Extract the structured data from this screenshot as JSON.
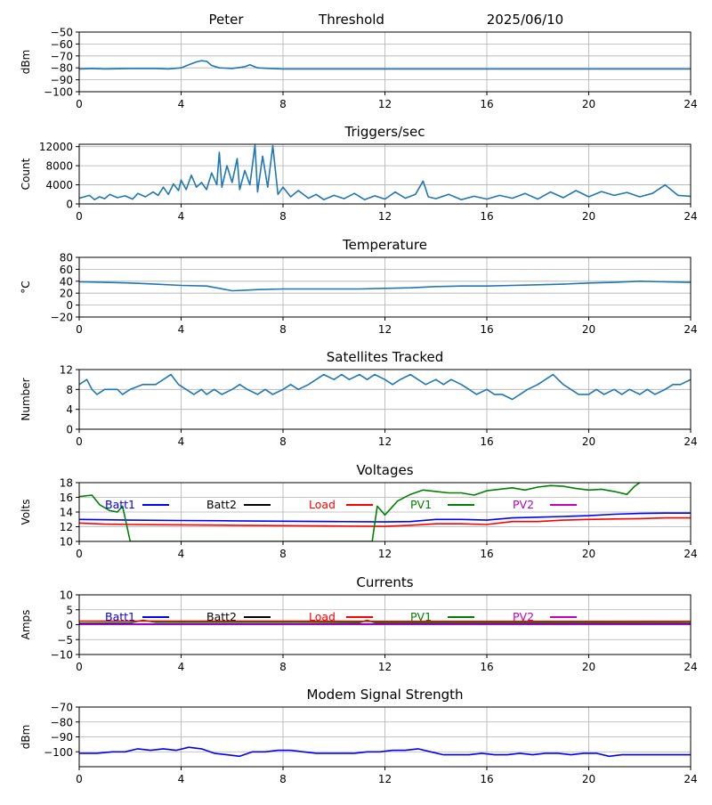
{
  "header": {
    "site": "Peter",
    "mode": "Threshold",
    "date": "2025/06/10"
  },
  "chart_data": [
    {
      "id": "rssi",
      "type": "line",
      "title": "",
      "ylabel": "dBm",
      "xlim": [
        0,
        24
      ],
      "ylim": [
        -100,
        -50
      ],
      "xticks": [
        "0",
        "4",
        "8",
        "12",
        "16",
        "20",
        "24"
      ],
      "yticks": [
        "−50",
        "−60",
        "−70",
        "−80",
        "−90",
        "−100"
      ],
      "ytick_values": [
        -50,
        -60,
        -70,
        -80,
        -90,
        -100
      ],
      "grid": true,
      "series": [
        {
          "color": "#1f77b4",
          "x": [
            0,
            0.5,
            1,
            2,
            3,
            3.5,
            4,
            4.3,
            4.6,
            4.8,
            5.0,
            5.2,
            5.5,
            6,
            6.5,
            6.7,
            7,
            7.5,
            8,
            9,
            10,
            12,
            14,
            16,
            18,
            20,
            22,
            24
          ],
          "y": [
            -81,
            -80.5,
            -81,
            -80.5,
            -80.5,
            -81,
            -80,
            -77.5,
            -75,
            -74,
            -74.5,
            -78,
            -80,
            -80.5,
            -79,
            -77.5,
            -80,
            -80.5,
            -81,
            -81,
            -81,
            -81,
            -81,
            -81,
            -81,
            -81,
            -81,
            -81
          ]
        }
      ]
    },
    {
      "id": "triggers",
      "type": "line",
      "title": "Triggers/sec",
      "ylabel": "Count",
      "xlim": [
        0,
        24
      ],
      "ylim": [
        0,
        12500
      ],
      "xticks": [
        "0",
        "4",
        "8",
        "12",
        "16",
        "20",
        "24"
      ],
      "yticks": [
        "12000",
        "8000",
        "4000",
        "0"
      ],
      "ytick_values": [
        12000,
        8000,
        4000,
        0
      ],
      "grid": true,
      "series": [
        {
          "color": "#1f77b4",
          "x": [
            0,
            0.4,
            0.6,
            0.8,
            1.0,
            1.2,
            1.5,
            1.8,
            2.1,
            2.3,
            2.6,
            2.9,
            3.1,
            3.3,
            3.5,
            3.7,
            3.9,
            4.0,
            4.2,
            4.4,
            4.6,
            4.8,
            5.0,
            5.2,
            5.4,
            5.5,
            5.6,
            5.8,
            6.0,
            6.2,
            6.3,
            6.5,
            6.7,
            6.9,
            7.0,
            7.2,
            7.4,
            7.6,
            7.8,
            8.0,
            8.3,
            8.6,
            9.0,
            9.3,
            9.6,
            10.0,
            10.4,
            10.8,
            11.2,
            11.6,
            12.0,
            12.4,
            12.8,
            13.2,
            13.5,
            13.7,
            14.0,
            14.5,
            15.0,
            15.5,
            16.0,
            16.5,
            17.0,
            17.5,
            18.0,
            18.5,
            19.0,
            19.5,
            20.0,
            20.5,
            21.0,
            21.5,
            22.0,
            22.5,
            23.0,
            23.5,
            24.0
          ],
          "y": [
            1200,
            1800,
            900,
            1500,
            1100,
            2000,
            1300,
            1700,
            1000,
            2200,
            1500,
            2500,
            1800,
            3500,
            2000,
            4200,
            2800,
            5000,
            3000,
            6000,
            3500,
            4500,
            3000,
            6500,
            4000,
            10800,
            3500,
            8000,
            4500,
            9500,
            3000,
            7000,
            4000,
            12300,
            2500,
            10000,
            3500,
            12200,
            2000,
            3500,
            1500,
            2800,
            1200,
            2000,
            900,
            1800,
            1100,
            2200,
            900,
            1700,
            1000,
            2500,
            1200,
            2000,
            4800,
            1500,
            1100,
            2000,
            900,
            1600,
            1000,
            1800,
            1200,
            2200,
            1000,
            2500,
            1300,
            2800,
            1500,
            2600,
            1800,
            2400,
            1500,
            2200,
            4000,
            1800,
            1600
          ]
        }
      ]
    },
    {
      "id": "temperature",
      "type": "line",
      "title": "Temperature",
      "ylabel": "°C",
      "xlim": [
        0,
        24
      ],
      "ylim": [
        -20,
        80
      ],
      "xticks": [
        "0",
        "4",
        "8",
        "12",
        "16",
        "20",
        "24"
      ],
      "yticks": [
        "80",
        "60",
        "40",
        "20",
        "0",
        "−20"
      ],
      "ytick_values": [
        80,
        60,
        40,
        20,
        0,
        -20
      ],
      "grid": true,
      "series": [
        {
          "color": "#1f77b4",
          "x": [
            0,
            1,
            2,
            3,
            4,
            5,
            5.5,
            6,
            6.5,
            7,
            8,
            9,
            10,
            11,
            12,
            13,
            14,
            15,
            16,
            17,
            18,
            19,
            20,
            21,
            22,
            23,
            24
          ],
          "y": [
            39,
            38,
            37,
            35,
            33,
            32,
            28,
            24,
            25,
            26,
            27,
            27,
            27,
            27,
            28,
            29,
            31,
            32,
            32,
            33,
            34,
            35,
            37,
            38,
            40,
            39,
            38
          ]
        }
      ]
    },
    {
      "id": "satellites",
      "type": "line",
      "title": "Satellites Tracked",
      "ylabel": "Number",
      "xlim": [
        0,
        24
      ],
      "ylim": [
        0,
        12
      ],
      "xticks": [
        "0",
        "4",
        "8",
        "12",
        "16",
        "20",
        "24"
      ],
      "yticks": [
        "12",
        "8",
        "4",
        "0"
      ],
      "ytick_values": [
        12,
        8,
        4,
        0
      ],
      "grid": true,
      "series": [
        {
          "color": "#1f77b4",
          "x": [
            0,
            0.3,
            0.5,
            0.7,
            1.0,
            1.5,
            1.7,
            2.0,
            2.5,
            3.0,
            3.3,
            3.6,
            3.9,
            4.2,
            4.5,
            4.8,
            5.0,
            5.3,
            5.6,
            6.0,
            6.3,
            6.6,
            7.0,
            7.3,
            7.6,
            8.0,
            8.3,
            8.6,
            9.0,
            9.3,
            9.6,
            10.0,
            10.3,
            10.6,
            11.0,
            11.3,
            11.6,
            12.0,
            12.3,
            12.6,
            13.0,
            13.3,
            13.6,
            14.0,
            14.3,
            14.6,
            15.0,
            15.3,
            15.6,
            16.0,
            16.3,
            16.6,
            17.0,
            17.3,
            17.6,
            18.0,
            18.3,
            18.6,
            19.0,
            19.3,
            19.6,
            20.0,
            20.3,
            20.6,
            21.0,
            21.3,
            21.6,
            22.0,
            22.3,
            22.6,
            23.0,
            23.3,
            23.6,
            24.0
          ],
          "y": [
            9,
            10,
            8,
            7,
            8,
            8,
            7,
            8,
            9,
            9,
            10,
            11,
            9,
            8,
            7,
            8,
            7,
            8,
            7,
            8,
            9,
            8,
            7,
            8,
            7,
            8,
            9,
            8,
            9,
            10,
            11,
            10,
            11,
            10,
            11,
            10,
            11,
            10,
            9,
            10,
            11,
            10,
            9,
            10,
            9,
            10,
            9,
            8,
            7,
            8,
            7,
            7,
            6,
            7,
            8,
            9,
            10,
            11,
            9,
            8,
            7,
            7,
            8,
            7,
            8,
            7,
            8,
            7,
            8,
            7,
            8,
            9,
            9,
            10
          ]
        }
      ]
    },
    {
      "id": "voltages",
      "type": "line",
      "title": "Voltages",
      "ylabel": "Volts",
      "xlim": [
        0,
        24
      ],
      "ylim": [
        10,
        18
      ],
      "xticks": [
        "0",
        "4",
        "8",
        "12",
        "16",
        "20",
        "24"
      ],
      "yticks": [
        "18",
        "16",
        "14",
        "12",
        "10"
      ],
      "ytick_values": [
        18,
        16,
        14,
        12,
        10
      ],
      "grid": true,
      "legend": [
        {
          "label": "Batt1",
          "color": "#0000ff"
        },
        {
          "label": "Batt2",
          "color": "#000000"
        },
        {
          "label": "Load",
          "color": "#ff0000"
        },
        {
          "label": "PV1",
          "color": "#008000"
        },
        {
          "label": "PV2",
          "color": "#bf00bf"
        }
      ],
      "series": [
        {
          "name": "Batt1",
          "color": "#0000ff",
          "x": [
            0,
            2,
            4,
            6,
            8,
            10,
            12,
            13,
            14,
            15,
            16,
            17,
            18,
            19,
            20,
            21,
            22,
            23,
            24
          ],
          "y": [
            13.0,
            12.9,
            12.85,
            12.8,
            12.75,
            12.7,
            12.65,
            12.7,
            13.0,
            13.0,
            12.9,
            13.2,
            13.3,
            13.4,
            13.5,
            13.7,
            13.8,
            13.85,
            13.85
          ]
        },
        {
          "name": "Load",
          "color": "#ff0000",
          "x": [
            0,
            1,
            2,
            4,
            6,
            8,
            10,
            12,
            13,
            14,
            15,
            16,
            17,
            18,
            19,
            20,
            21,
            22,
            23,
            24
          ],
          "y": [
            12.5,
            12.35,
            12.3,
            12.25,
            12.2,
            12.15,
            12.1,
            12.05,
            12.2,
            12.4,
            12.4,
            12.3,
            12.7,
            12.7,
            12.9,
            13.0,
            13.05,
            13.1,
            13.2,
            13.2
          ]
        },
        {
          "name": "PV1",
          "color": "#008000",
          "x": [
            0,
            0.5,
            0.8,
            1.2,
            1.5,
            1.7,
            2.0,
            2.2,
            11.5,
            11.7,
            12.0,
            12.5,
            13.0,
            13.5,
            14.0,
            14.5,
            15.0,
            15.5,
            16.0,
            16.5,
            17.0,
            17.5,
            18.0,
            18.5,
            19.0,
            19.5,
            20.0,
            20.5,
            21.0,
            21.5,
            21.8,
            22.0
          ],
          "y": [
            16.1,
            16.3,
            15.0,
            14.2,
            14.0,
            14.8,
            10.0,
            10.0,
            10.0,
            14.8,
            13.6,
            15.5,
            16.4,
            17.0,
            16.8,
            16.6,
            16.6,
            16.3,
            16.9,
            17.1,
            17.3,
            17.0,
            17.4,
            17.6,
            17.5,
            17.2,
            17.0,
            17.1,
            16.8,
            16.4,
            17.5,
            18.0
          ]
        }
      ]
    },
    {
      "id": "currents",
      "type": "line",
      "title": "Currents",
      "ylabel": "Amps",
      "xlim": [
        0,
        24
      ],
      "ylim": [
        -10,
        10
      ],
      "xticks": [
        "0",
        "4",
        "8",
        "12",
        "16",
        "20",
        "24"
      ],
      "yticks": [
        "10",
        "5",
        "0",
        "−5",
        "−10"
      ],
      "ytick_values": [
        10,
        5,
        0,
        -5,
        -10
      ],
      "grid": true,
      "legend": [
        {
          "label": "Batt1",
          "color": "#0000ff"
        },
        {
          "label": "Batt2",
          "color": "#000000"
        },
        {
          "label": "Load",
          "color": "#ff0000"
        },
        {
          "label": "PV1",
          "color": "#008000"
        },
        {
          "label": "PV2",
          "color": "#bf00bf"
        }
      ],
      "series": [
        {
          "name": "PV1",
          "color": "#008000",
          "x": [
            0,
            2.0,
            2.5,
            3.0,
            6.0,
            9.0,
            11.0,
            11.3,
            11.6,
            14.0,
            18.0,
            24.0
          ],
          "y": [
            0.5,
            0.6,
            1.5,
            0.8,
            0.8,
            0.8,
            0.7,
            1.5,
            0.7,
            0.7,
            0.7,
            0.6
          ]
        },
        {
          "name": "Load",
          "color": "#ff0000",
          "x": [
            0,
            4,
            8,
            12,
            16,
            20,
            24
          ],
          "y": [
            1.2,
            1.2,
            1.2,
            1.1,
            1.1,
            1.1,
            1.1
          ]
        },
        {
          "name": "Batt1",
          "color": "#0000ff",
          "x": [
            0,
            24
          ],
          "y": [
            0.2,
            0.2
          ]
        },
        {
          "name": "PV2",
          "color": "#bf00bf",
          "x": [
            0,
            24
          ],
          "y": [
            0.1,
            0.1
          ]
        }
      ]
    },
    {
      "id": "modem",
      "type": "line",
      "title": "Modem Signal Strength",
      "ylabel": "dBm",
      "xlim": [
        0,
        24
      ],
      "ylim": [
        -110,
        -70
      ],
      "xticks": [
        "0",
        "4",
        "8",
        "12",
        "16",
        "20",
        "24"
      ],
      "yticks": [
        "−70",
        "−80",
        "−90",
        "−100"
      ],
      "ytick_values": [
        -70,
        -80,
        -90,
        -100
      ],
      "grid": true,
      "series": [
        {
          "color": "#0000ff",
          "x": [
            0,
            0.7,
            1.3,
            1.8,
            2.3,
            2.8,
            3.3,
            3.8,
            4.3,
            4.8,
            5.3,
            5.8,
            6.3,
            6.8,
            7.3,
            7.8,
            8.3,
            8.8,
            9.3,
            9.8,
            10.3,
            10.8,
            11.3,
            11.8,
            12.3,
            12.8,
            13.3,
            13.8,
            14.3,
            14.8,
            15.3,
            15.8,
            16.3,
            16.8,
            17.3,
            17.8,
            18.3,
            18.8,
            19.3,
            19.8,
            20.3,
            20.8,
            21.3,
            22,
            23,
            24
          ],
          "y": [
            -101,
            -101,
            -100,
            -100,
            -98,
            -99,
            -98,
            -99,
            -97,
            -98,
            -101,
            -102,
            -103,
            -100,
            -100,
            -99,
            -99,
            -100,
            -101,
            -101,
            -101,
            -101,
            -100,
            -100,
            -99,
            -99,
            -98,
            -100,
            -102,
            -102,
            -102,
            -101,
            -102,
            -102,
            -101,
            -102,
            -101,
            -101,
            -102,
            -101,
            -101,
            -103,
            -102,
            -102,
            -102,
            -102
          ]
        }
      ]
    }
  ]
}
